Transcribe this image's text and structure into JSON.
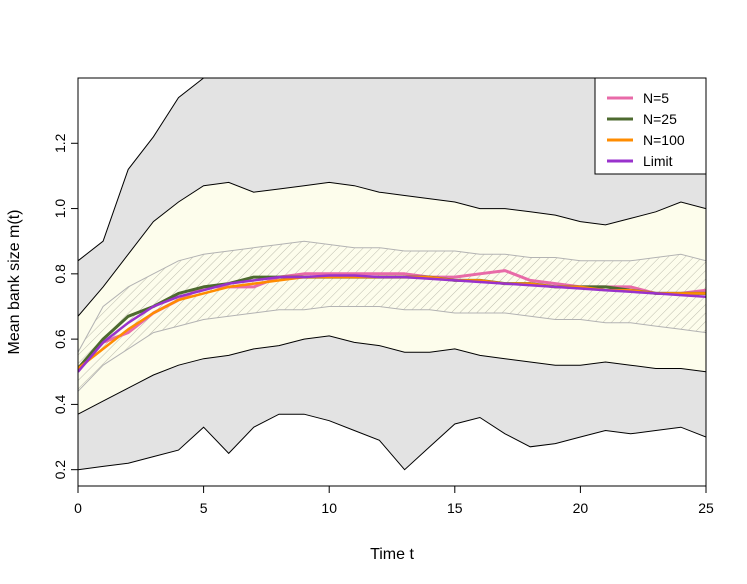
{
  "chart_data": {
    "type": "line",
    "title": "",
    "xlabel": "Time t",
    "ylabel": "Mean bank size m(t)",
    "xlim": [
      0,
      25
    ],
    "ylim": [
      0.15,
      1.4
    ],
    "x_ticks": [
      0,
      5,
      10,
      15,
      20,
      25
    ],
    "x_tick_labels": [
      "0",
      "5",
      "10",
      "15",
      "20",
      "25"
    ],
    "y_ticks": [
      0.2,
      0.4,
      0.6,
      0.8,
      1.0,
      1.2
    ],
    "y_tick_labels": [
      "0.2",
      "0.4",
      "0.6",
      "0.8",
      "1.0",
      "1.2"
    ],
    "grid": false,
    "legend_position": "top-right",
    "colors": {
      "outer_band": "#e3e3e3",
      "inner_band": "#fdfdec",
      "band_edge": "#000000",
      "hatch_band_edge": "#b3b3b3",
      "N=5": "#e86aa8",
      "N=25": "#4d6a2f",
      "N=100": "#ff8c00",
      "Limit": "#9932cc"
    },
    "x": [
      0,
      1,
      2,
      3,
      4,
      5,
      6,
      7,
      8,
      9,
      10,
      11,
      12,
      13,
      14,
      15,
      16,
      17,
      18,
      19,
      20,
      21,
      22,
      23,
      24,
      25
    ],
    "bands": [
      {
        "role": "outer",
        "lower": [
          0.2,
          0.21,
          0.22,
          0.24,
          0.26,
          0.33,
          0.25,
          0.33,
          0.37,
          0.37,
          0.35,
          0.32,
          0.29,
          0.2,
          0.27,
          0.34,
          0.36,
          0.31,
          0.27,
          0.28,
          0.3,
          0.32,
          0.31,
          0.32,
          0.33,
          0.3
        ],
        "upper": [
          0.84,
          0.9,
          1.12,
          1.22,
          1.34,
          1.4,
          1.4,
          1.4,
          1.4,
          1.4,
          1.4,
          1.4,
          1.4,
          1.4,
          1.4,
          1.4,
          1.4,
          1.4,
          1.4,
          1.4,
          1.4,
          1.4,
          1.4,
          1.4,
          1.4,
          1.4
        ]
      },
      {
        "role": "inner",
        "lower": [
          0.37,
          0.41,
          0.45,
          0.49,
          0.52,
          0.54,
          0.55,
          0.57,
          0.58,
          0.6,
          0.61,
          0.59,
          0.58,
          0.56,
          0.56,
          0.57,
          0.55,
          0.54,
          0.53,
          0.52,
          0.52,
          0.53,
          0.52,
          0.51,
          0.51,
          0.5
        ],
        "upper": [
          0.67,
          0.76,
          0.86,
          0.96,
          1.02,
          1.07,
          1.08,
          1.05,
          1.06,
          1.07,
          1.08,
          1.07,
          1.05,
          1.04,
          1.03,
          1.02,
          1.0,
          1.0,
          0.99,
          0.98,
          0.96,
          0.95,
          0.97,
          0.99,
          1.02,
          1.0
        ]
      },
      {
        "role": "hatched",
        "lower": [
          0.44,
          0.52,
          0.57,
          0.62,
          0.64,
          0.66,
          0.67,
          0.68,
          0.69,
          0.69,
          0.7,
          0.7,
          0.7,
          0.69,
          0.69,
          0.68,
          0.68,
          0.68,
          0.67,
          0.66,
          0.66,
          0.65,
          0.65,
          0.64,
          0.63,
          0.62
        ],
        "upper": [
          0.56,
          0.7,
          0.76,
          0.8,
          0.84,
          0.86,
          0.87,
          0.88,
          0.89,
          0.9,
          0.89,
          0.88,
          0.88,
          0.87,
          0.87,
          0.87,
          0.86,
          0.86,
          0.85,
          0.85,
          0.84,
          0.84,
          0.84,
          0.85,
          0.86,
          0.84
        ]
      }
    ],
    "series": [
      {
        "name": "N=5",
        "values": [
          0.51,
          0.59,
          0.62,
          0.68,
          0.72,
          0.76,
          0.76,
          0.76,
          0.79,
          0.8,
          0.8,
          0.8,
          0.8,
          0.8,
          0.79,
          0.79,
          0.8,
          0.81,
          0.78,
          0.77,
          0.76,
          0.76,
          0.76,
          0.74,
          0.74,
          0.75
        ]
      },
      {
        "name": "N=25",
        "values": [
          0.51,
          0.6,
          0.67,
          0.7,
          0.74,
          0.76,
          0.77,
          0.79,
          0.79,
          0.79,
          0.79,
          0.79,
          0.79,
          0.79,
          0.79,
          0.78,
          0.78,
          0.77,
          0.77,
          0.76,
          0.76,
          0.76,
          0.75,
          0.74,
          0.74,
          0.74
        ]
      },
      {
        "name": "N=100",
        "values": [
          0.51,
          0.57,
          0.63,
          0.68,
          0.72,
          0.74,
          0.76,
          0.77,
          0.78,
          0.79,
          0.79,
          0.79,
          0.79,
          0.79,
          0.79,
          0.78,
          0.78,
          0.77,
          0.77,
          0.76,
          0.76,
          0.75,
          0.75,
          0.74,
          0.74,
          0.74
        ]
      },
      {
        "name": "Limit",
        "values": [
          0.5,
          0.59,
          0.65,
          0.7,
          0.73,
          0.75,
          0.77,
          0.78,
          0.79,
          0.79,
          0.795,
          0.795,
          0.79,
          0.79,
          0.785,
          0.78,
          0.775,
          0.77,
          0.765,
          0.76,
          0.755,
          0.75,
          0.745,
          0.74,
          0.735,
          0.73
        ]
      }
    ]
  }
}
